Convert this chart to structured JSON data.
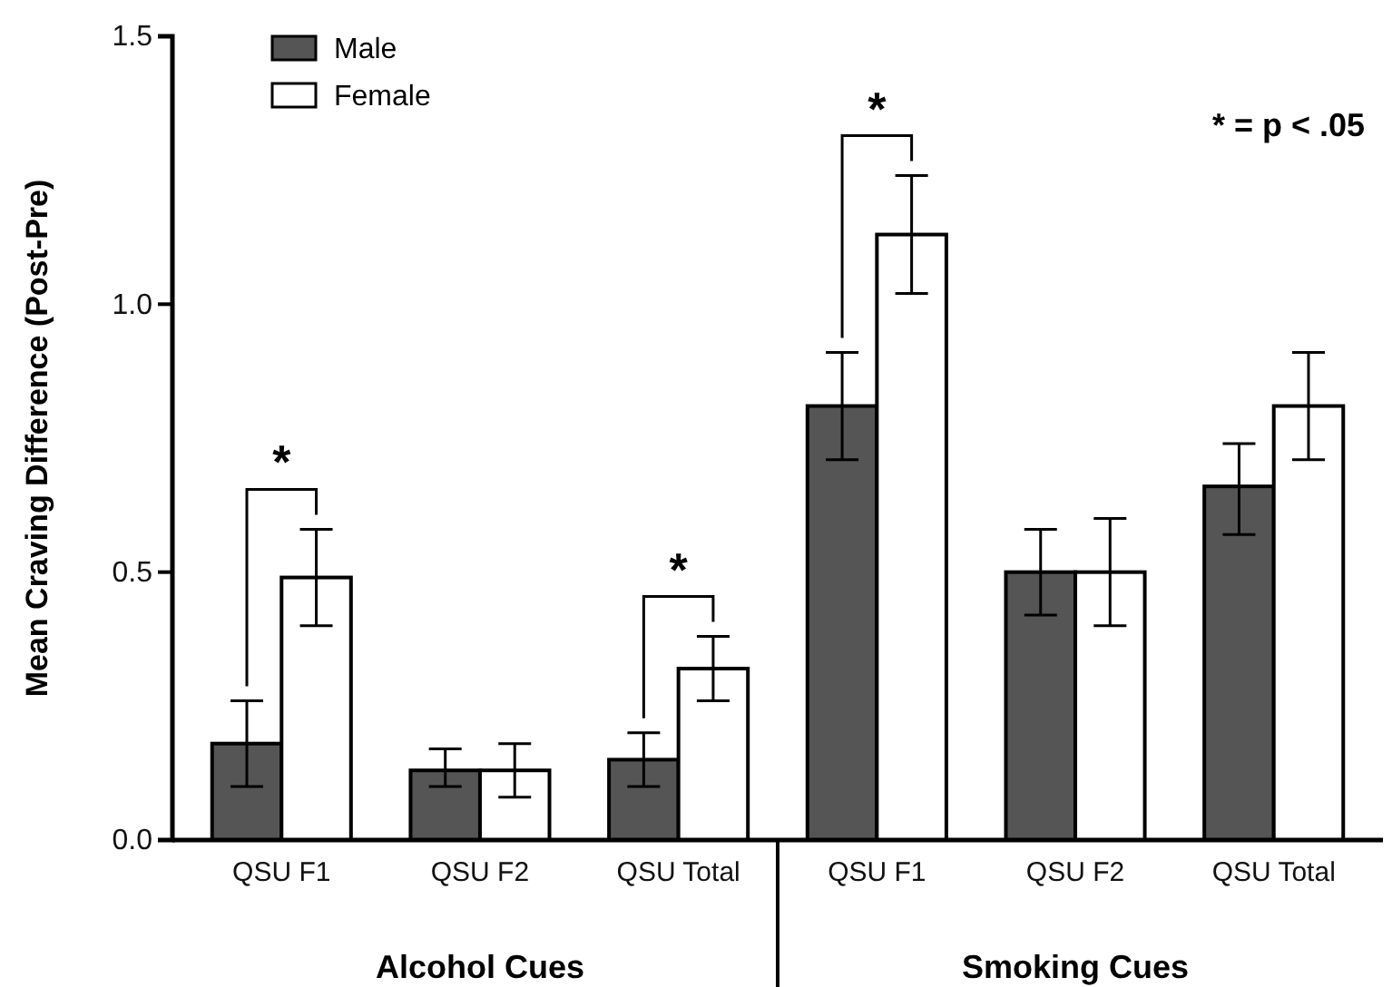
{
  "chart_data": {
    "type": "bar",
    "ylabel": "Mean Craving Difference (Post-Pre)",
    "categories": [
      "QSU F1",
      "QSU F2",
      "QSU Total",
      "QSU F1",
      "QSU F2",
      "QSU Total"
    ],
    "series": [
      {
        "name": "Male",
        "color": "#555555",
        "values": [
          0.18,
          0.13,
          0.15,
          0.81,
          0.5,
          0.66
        ],
        "errors": [
          [
            0.1,
            0.26
          ],
          [
            0.1,
            0.17
          ],
          [
            0.1,
            0.2
          ],
          [
            0.71,
            0.91
          ],
          [
            0.42,
            0.58
          ],
          [
            0.57,
            0.74
          ]
        ]
      },
      {
        "name": "Female",
        "color": "#ffffff",
        "values": [
          0.49,
          0.13,
          0.32,
          1.13,
          0.5,
          0.81
        ],
        "errors": [
          [
            0.4,
            0.58
          ],
          [
            0.08,
            0.18
          ],
          [
            0.26,
            0.38
          ],
          [
            1.02,
            1.24
          ],
          [
            0.4,
            0.6
          ],
          [
            0.71,
            0.91
          ]
        ]
      }
    ],
    "ylim": [
      0,
      1.5
    ],
    "yticks": [
      {
        "value": 0,
        "label": "0.0"
      },
      {
        "value": 0.5,
        "label": "0.5"
      },
      {
        "value": 1,
        "label": "1.0"
      },
      {
        "value": 1.5,
        "label": "1.5"
      }
    ],
    "legend": "top left",
    "grid": false,
    "annotations": [
      "*",
      "*",
      "*",
      "* = p < .05",
      "Alcohol Cues",
      "Smoking Cues"
    ]
  }
}
